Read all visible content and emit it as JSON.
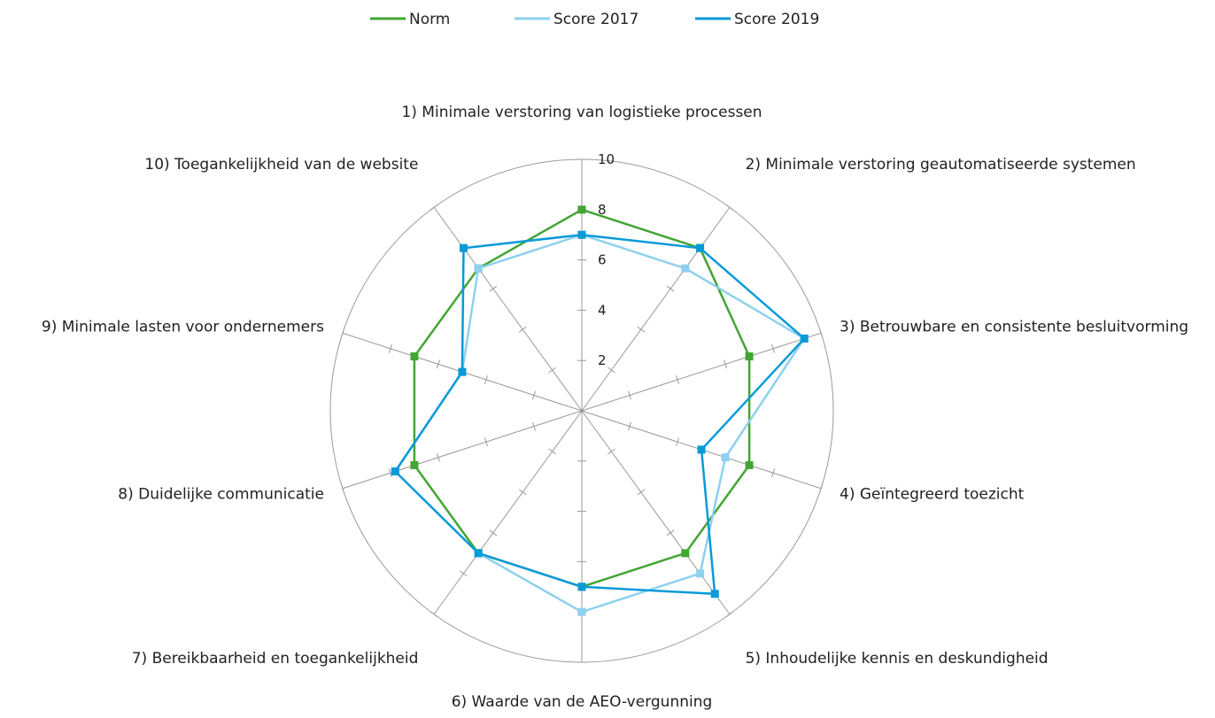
{
  "chart_data": {
    "type": "radar",
    "axes": [
      "1)  Minimale verstoring van logistieke processen",
      "2)  Minimale verstoring geautomatiseerde systemen",
      "3)  Betrouwbare en consistente besluitvorming",
      "4) Geïntegreerd toezicht",
      "5)  Inhoudelijke kennis en deskundigheid",
      "6) Waarde van de AEO-vergunning",
      "7) Bereikbaarheid en toegankelijkheid",
      "8) Duidelijke communicatie",
      "9) Minimale lasten voor ondernemers",
      "10) Toegankelijkheid van de website"
    ],
    "rlim": [
      0,
      10
    ],
    "ticks": [
      2,
      4,
      6,
      8,
      10
    ],
    "grid": true,
    "legend_position": "top-center",
    "series": [
      {
        "name": "Norm",
        "color": "#43a534",
        "values": [
          8,
          8,
          7,
          7,
          7,
          7,
          7,
          7,
          7,
          7
        ]
      },
      {
        "name": "Score 2017",
        "color": "#8ed1ee",
        "values": [
          7,
          7,
          9.3,
          6,
          8,
          8,
          7,
          7.8,
          5,
          7
        ]
      },
      {
        "name": "Score 2019",
        "color": "#0a9ad8",
        "values": [
          7,
          8,
          9.3,
          5,
          9,
          7,
          7,
          7.8,
          5,
          8
        ]
      }
    ]
  }
}
